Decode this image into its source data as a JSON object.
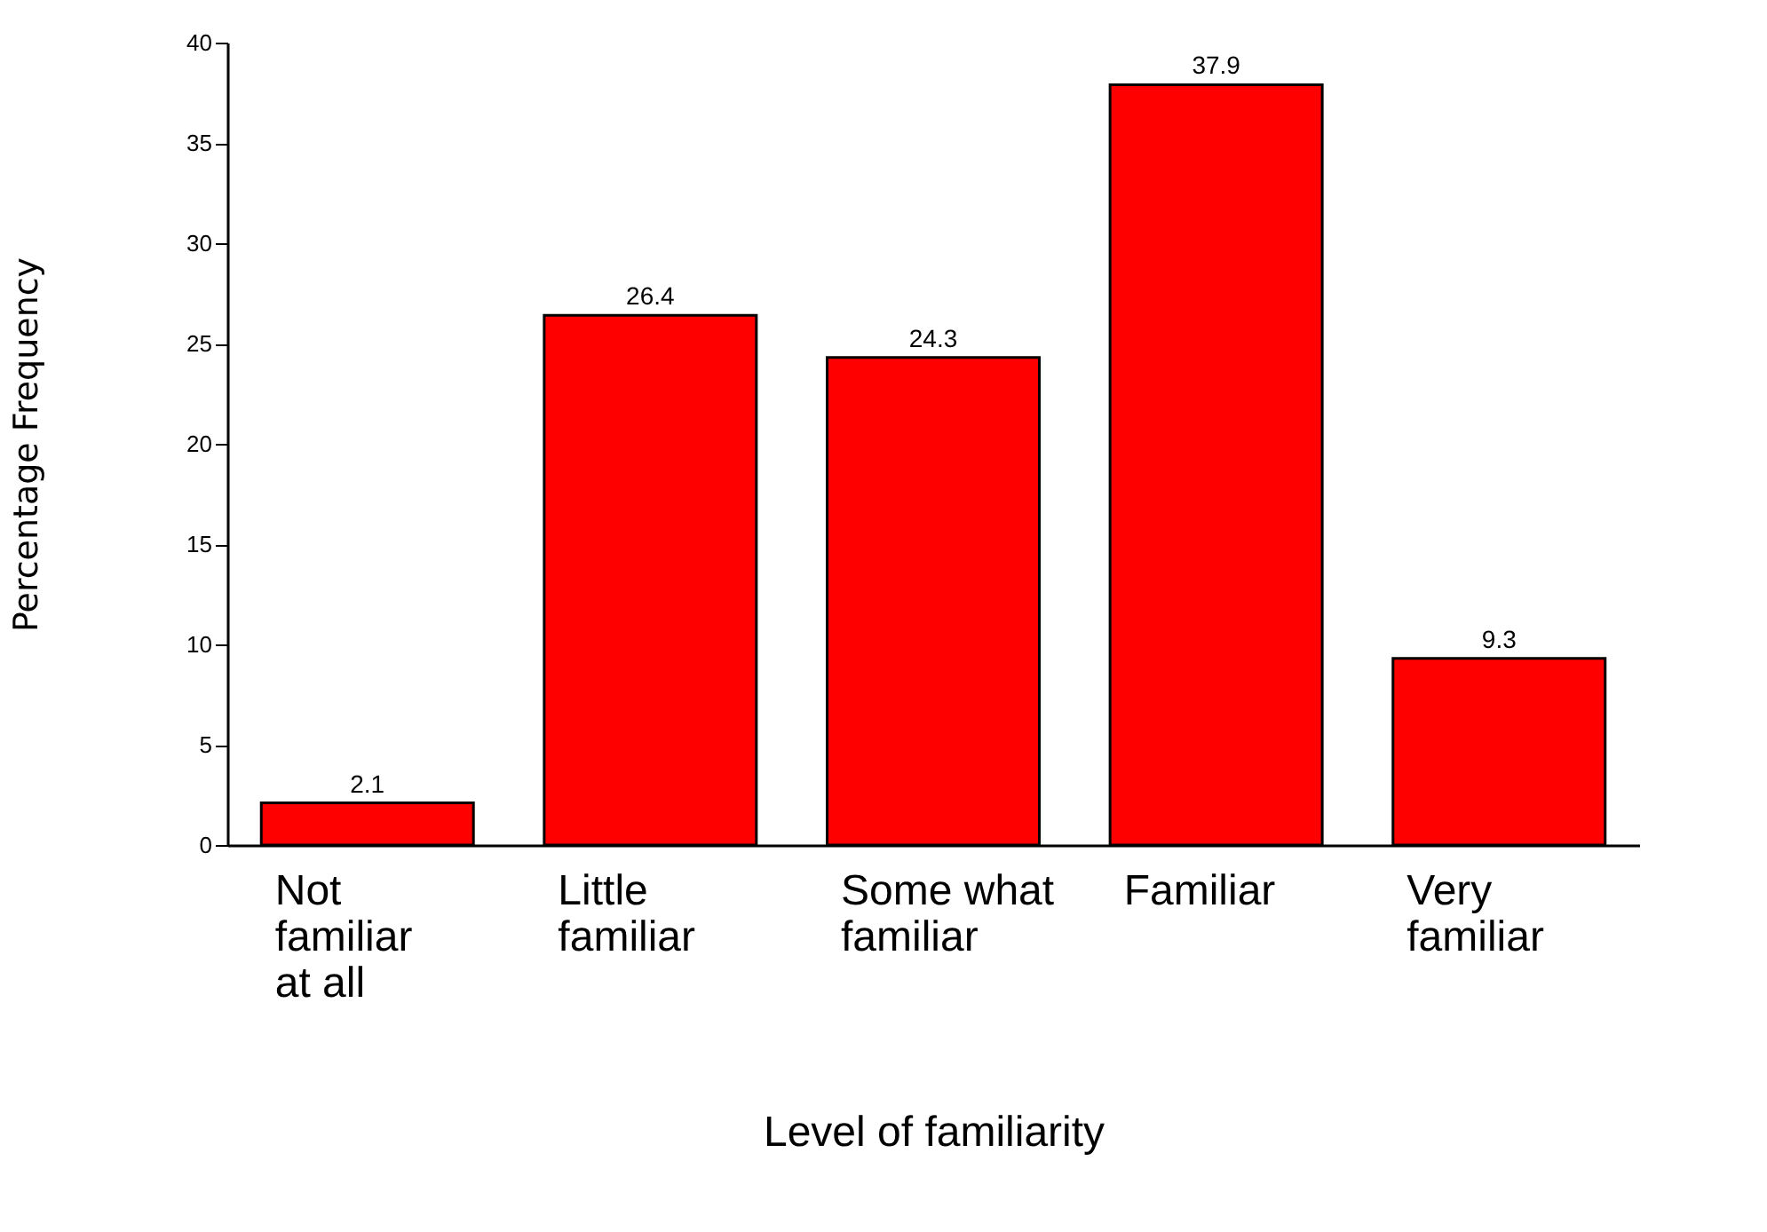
{
  "chart_data": {
    "type": "bar",
    "xlabel": "Level of familiarity",
    "ylabel": "Percentage   Frequency",
    "categories": [
      "Not familiar at all",
      "Little familiar",
      "Some what familiar",
      "Familiar",
      "Very familiar"
    ],
    "values": [
      2.1,
      26.4,
      24.3,
      37.9,
      9.3
    ],
    "color": "#ff0000",
    "ylim": [
      0,
      40
    ],
    "yticks": [
      0,
      5,
      10,
      15,
      20,
      25,
      30,
      35,
      40
    ],
    "grid": false,
    "data_labels": true
  }
}
